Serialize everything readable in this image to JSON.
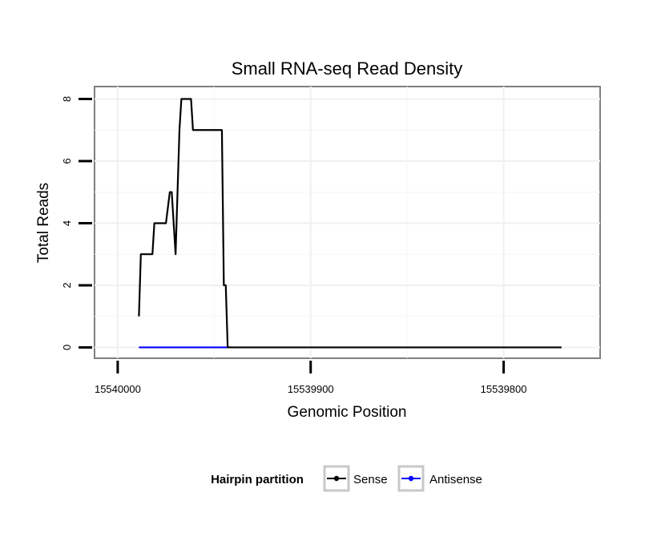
{
  "chart_data": {
    "type": "line",
    "title": "Small RNA-seq Read Density",
    "xlabel": "Genomic Position",
    "ylabel": "Total Reads",
    "xlim": [
      15540012,
      15539750
    ],
    "ylim": [
      -0.35,
      8.4
    ],
    "x_reversed": true,
    "xticks": [
      15540000,
      15539900,
      15539800
    ],
    "xtick_labels": [
      "15540000",
      "15539900",
      "15539800"
    ],
    "yticks": [
      0,
      2,
      4,
      6,
      8
    ],
    "ytick_labels": [
      "0",
      "2",
      "4",
      "6",
      "8"
    ],
    "grid": true,
    "legend": {
      "title": "Hairpin partition",
      "position": "bottom"
    },
    "series": [
      {
        "name": "Sense",
        "color": "#000000",
        "x": [
          15539989,
          15539988,
          15539985,
          15539982,
          15539981,
          15539975,
          15539973,
          15539972,
          15539970,
          15539969,
          15539968,
          15539967,
          15539966,
          15539965,
          15539962,
          15539961,
          15539959,
          15539946,
          15539945,
          15539944,
          15539943,
          15539941,
          15539770
        ],
        "values": [
          1,
          3,
          3,
          3,
          4,
          4,
          5,
          5,
          3,
          5,
          7,
          8,
          8,
          8,
          8,
          7,
          7,
          7,
          2,
          2,
          0,
          0,
          0
        ]
      },
      {
        "name": "Antisense",
        "color": "#0000ff",
        "x": [
          15539989,
          15539941
        ],
        "values": [
          0,
          0
        ]
      }
    ]
  }
}
